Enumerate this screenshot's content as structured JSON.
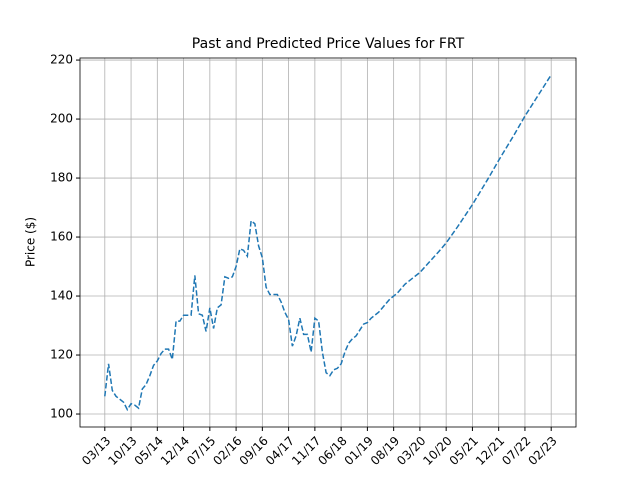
{
  "chart_data": {
    "type": "line",
    "title": "Past and Predicted Price Values for FRT",
    "y_label": "Price ($)",
    "categories": [
      "03/13",
      "04/13",
      "05/13",
      "06/13",
      "07/13",
      "08/13",
      "09/13",
      "10/13",
      "11/13",
      "12/13",
      "01/14",
      "02/14",
      "03/14",
      "04/14",
      "05/14",
      "06/14",
      "07/14",
      "08/14",
      "09/14",
      "10/14",
      "11/14",
      "12/14",
      "01/15",
      "02/15",
      "03/15",
      "04/15",
      "05/15",
      "06/15",
      "07/15",
      "08/15",
      "09/15",
      "10/15",
      "11/15",
      "12/15",
      "01/16",
      "02/16",
      "03/16",
      "04/16",
      "05/16",
      "06/16",
      "07/16",
      "08/16",
      "09/16",
      "10/16",
      "11/16",
      "12/16",
      "01/17",
      "02/17",
      "03/17",
      "04/17",
      "05/17",
      "06/17",
      "07/17",
      "08/17",
      "09/17",
      "10/17",
      "11/17",
      "12/17",
      "01/18",
      "02/18",
      "03/18",
      "04/18",
      "05/18",
      "06/18",
      "07/18",
      "08/18",
      "09/18",
      "10/18",
      "11/18",
      "12/18",
      "01/19",
      "02/19",
      "03/19",
      "04/19",
      "05/19",
      "06/19",
      "07/19",
      "08/19",
      "09/19",
      "10/19",
      "11/19",
      "12/19",
      "01/20",
      "02/20",
      "03/20",
      "04/20",
      "05/20",
      "06/20",
      "07/20",
      "08/20",
      "09/20",
      "10/20",
      "11/20",
      "12/20",
      "01/21",
      "02/21",
      "03/21",
      "04/21",
      "05/21",
      "06/21",
      "07/21",
      "08/21",
      "09/21",
      "10/21",
      "11/21",
      "12/21",
      "01/22",
      "02/22",
      "03/22",
      "04/22",
      "05/22",
      "06/22",
      "07/22",
      "08/22",
      "09/22",
      "10/22",
      "11/22",
      "12/22",
      "01/23",
      "02/23"
    ],
    "series": [
      {
        "color": "#1f77b4",
        "dashed": true,
        "values": [
          106,
          117,
          108,
          106,
          105,
          104,
          101.5,
          103.5,
          103,
          102,
          108.5,
          110,
          113,
          116.5,
          118,
          120.5,
          122,
          122,
          118.5,
          131.5,
          131.5,
          133.5,
          133.5,
          133.5,
          147,
          134,
          133.5,
          128,
          136,
          129,
          136,
          137,
          146.5,
          146,
          146.5,
          150,
          156,
          155.5,
          153.5,
          165.5,
          164.5,
          157,
          153,
          143,
          140.5,
          140.5,
          140.5,
          138,
          134.5,
          132,
          123,
          126.5,
          132.5,
          127,
          127,
          121,
          132.5,
          131.5,
          121,
          114,
          113,
          115,
          115.5,
          117,
          121,
          124,
          125.5,
          126.5,
          128.5,
          130.5,
          131,
          132.5,
          133.5,
          134.5,
          136,
          137.5,
          139,
          140,
          141,
          142.5,
          144,
          145,
          146,
          147,
          148,
          149.4,
          150.8,
          152.2,
          153.6,
          155,
          156.5,
          158,
          159.8,
          161.6,
          163.4,
          165.3,
          167.2,
          169.1,
          171,
          173.1,
          175.2,
          177.3,
          179.4,
          181.6,
          183.8,
          186,
          188.1,
          190.2,
          192.3,
          194.4,
          196.6,
          198.8,
          201,
          203,
          205,
          207,
          209,
          211,
          213,
          215
        ]
      }
    ],
    "xticks": [
      "03/13",
      "10/13",
      "05/14",
      "12/14",
      "07/15",
      "02/16",
      "09/16",
      "04/17",
      "11/17",
      "06/18",
      "01/19",
      "08/19",
      "03/20",
      "10/20",
      "05/21",
      "12/21",
      "07/22",
      "02/23"
    ],
    "ylim": [
      95.6,
      220.7
    ],
    "yticks": [
      100,
      120,
      140,
      160,
      180,
      200,
      220
    ],
    "grid": true
  }
}
